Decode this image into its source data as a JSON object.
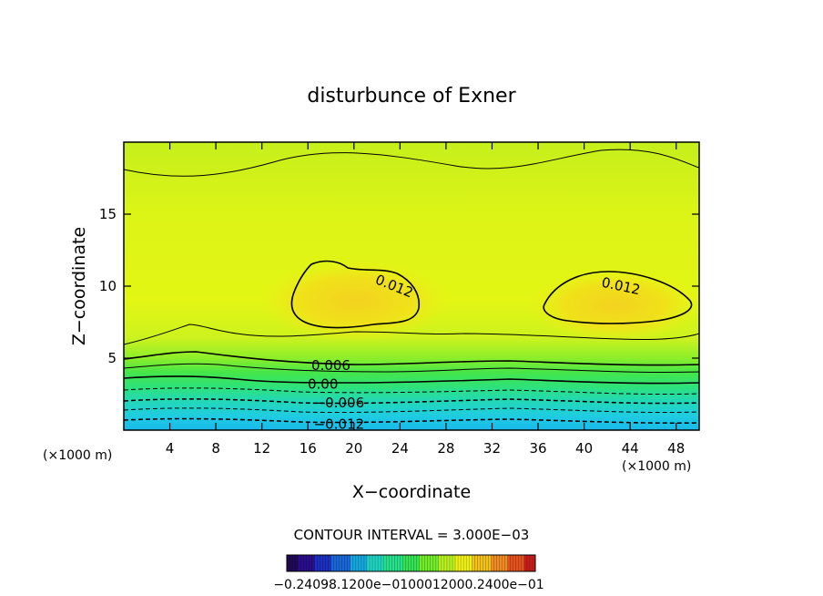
{
  "chart_data": {
    "type": "heatmap",
    "title": "disturbunce of Exner",
    "xlabel": "X−coordinate",
    "ylabel": "Z−coordinate",
    "x_unit": "(×1000 m)",
    "y_unit": "(×1000 m)",
    "xlim": [
      0,
      50
    ],
    "ylim": [
      0,
      20
    ],
    "x_ticks": [
      4,
      8,
      12,
      16,
      20,
      24,
      28,
      32,
      36,
      40,
      44,
      48
    ],
    "y_ticks": [
      5,
      10,
      15
    ],
    "contour_interval_label": "CONTOUR INTERVAL = 3.000E−03",
    "contour_labels": [
      {
        "text": "0.012",
        "x": 23.5,
        "z": 10.0
      },
      {
        "text": "0.012",
        "x": 43.2,
        "z": 10.0
      },
      {
        "text": "0.006",
        "x": 18.0,
        "z": 4.5
      },
      {
        "text": "0.00",
        "x": 17.3,
        "z": 3.2
      },
      {
        "text": "−0.006",
        "x": 18.7,
        "z": 1.9
      },
      {
        "text": "−0.012",
        "x": 18.7,
        "z": 0.4
      }
    ],
    "colorbar": {
      "colors": [
        "#1e0a55",
        "#2a0d8a",
        "#1c2fbf",
        "#1a66d8",
        "#16a6de",
        "#1fd3c0",
        "#27e08a",
        "#35e253",
        "#72ec2a",
        "#b9f020",
        "#eef018",
        "#f2c21c",
        "#ef8b22",
        "#e3521e",
        "#c81d1a"
      ],
      "tick_labels": [
        "−0.24098.1200e−0100012000.2400e−01"
      ]
    },
    "field_colors": {
      "deep_negative": "#19b9ea",
      "negative": "#22d8b8",
      "near_zero": "#3de75a",
      "positive": "#b8f21e",
      "high": "#e4f812",
      "peak": "#f3d21f"
    }
  }
}
